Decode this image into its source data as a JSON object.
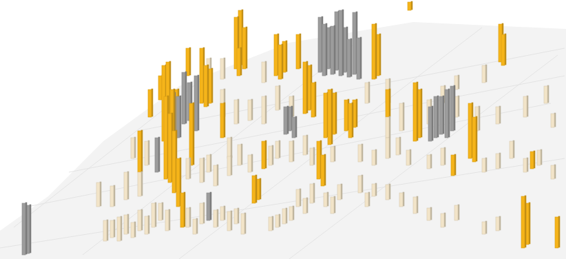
{
  "chart_data": {
    "type": "bar3d_map",
    "tick_labels": false,
    "xlim": [
      0,
      822
    ],
    "ylim": [
      0,
      376
    ],
    "series": [
      {
        "color": "#f5b41a",
        "x": [
          340,
          346,
          352,
          344,
          290,
          296,
          302,
          235,
          241,
          247,
          253,
          238,
          244,
          250,
          256,
          262,
          275,
          320,
          398,
          404,
          410,
          440,
          446,
          452,
          470,
          476,
          482,
          500,
          506,
          512,
          460,
          466,
          540,
          546,
          430,
          600,
          606,
          680,
          686,
          724,
          728,
          757,
          763,
          806,
          770,
          592,
          366,
          372,
          200,
          215,
          380,
          560,
          655,
          230,
          270
        ],
        "y": [
          100,
          95,
          100,
          110,
          150,
          155,
          150,
          205,
          210,
          220,
          200,
          260,
          265,
          280,
          300,
          330,
          240,
          200,
          110,
          115,
          105,
          165,
          160,
          170,
          200,
          210,
          195,
          190,
          200,
          185,
          260,
          270,
          115,
          110,
          100,
          205,
          200,
          230,
          235,
          90,
          95,
          360,
          355,
          360,
          245,
          15,
          295,
          290,
          250,
          170,
          245,
          170,
          255,
          145,
          110
        ],
        "values": [
          75,
          80,
          60,
          40,
          80,
          60,
          50,
          110,
          120,
          90,
          70,
          120,
          100,
          90,
          70,
          50,
          90,
          50,
          60,
          50,
          45,
          75,
          65,
          50,
          65,
          80,
          60,
          45,
          50,
          40,
          55,
          45,
          80,
          60,
          50,
          85,
          70,
          80,
          65,
          55,
          45,
          75,
          60,
          45,
          25,
          12,
          40,
          30,
          60,
          40,
          40,
          40,
          30,
          35,
          40
        ]
      },
      {
        "color": "#9c9c9c",
        "x": [
          462,
          468,
          474,
          480,
          486,
          492,
          498,
          504,
          512,
          518,
          240,
          248,
          256,
          264,
          272,
          282,
          412,
          418,
          424,
          622,
          630,
          638,
          646,
          654,
          32,
          38,
          300,
          225
        ],
        "y": [
          105,
          110,
          100,
          108,
          102,
          110,
          105,
          112,
          108,
          115,
          195,
          205,
          200,
          180,
          175,
          190,
          195,
          190,
          200,
          205,
          200,
          195,
          200,
          190,
          370,
          368,
          320,
          250
        ],
        "values": [
          80,
          75,
          60,
          70,
          85,
          95,
          65,
          55,
          90,
          60,
          90,
          70,
          60,
          75,
          55,
          80,
          40,
          35,
          30,
          50,
          60,
          55,
          70,
          65,
          75,
          70,
          40,
          50
        ]
      },
      {
        "color": "#f2e4c8",
        "x": [
          150,
          160,
          170,
          180,
          190,
          200,
          210,
          220,
          230,
          240,
          270,
          280,
          290,
          310,
          320,
          330,
          340,
          350,
          390,
          400,
          410,
          420,
          430,
          440,
          450,
          470,
          480,
          490,
          520,
          530,
          540,
          560,
          580,
          600,
          620,
          640,
          660,
          700,
          720,
          140,
          160,
          180,
          200,
          190,
          210,
          270,
          290,
          300,
          310,
          330,
          345,
          360,
          390,
          400,
          420,
          440,
          450,
          480,
          520,
          540,
          560,
          575,
          590,
          620,
          640,
          700,
          720,
          740,
          760,
          780,
          800,
          560,
          580,
          620,
          660,
          690,
          720,
          760,
          790,
          800,
          320,
          340,
          360,
          380,
          400,
          420,
          380,
          300,
          320,
          330,
          530,
          560,
          600,
          640,
          700,
          660
        ],
        "y": [
          350,
          345,
          350,
          340,
          345,
          335,
          340,
          330,
          320,
          335,
          330,
          340,
          325,
          330,
          320,
          335,
          325,
          340,
          335,
          330,
          325,
          320,
          300,
          310,
          295,
          300,
          310,
          290,
          280,
          300,
          285,
          290,
          300,
          310,
          320,
          330,
          320,
          340,
          335,
          300,
          300,
          290,
          285,
          230,
          240,
          260,
          265,
          250,
          270,
          255,
          240,
          250,
          240,
          230,
          235,
          225,
          240,
          235,
          235,
          240,
          230,
          225,
          240,
          245,
          240,
          250,
          245,
          230,
          250,
          240,
          260,
          200,
          190,
          180,
          170,
          190,
          180,
          170,
          150,
          185,
          170,
          180,
          175,
          180,
          160,
          170,
          120,
          120,
          115,
          230,
          150,
          150,
          160,
          150,
          120,
          130
        ],
        "values": [
          30,
          25,
          35,
          28,
          22,
          30,
          26,
          35,
          25,
          30,
          28,
          22,
          30,
          25,
          20,
          28,
          22,
          30,
          20,
          18,
          22,
          20,
          25,
          22,
          28,
          20,
          24,
          22,
          25,
          20,
          18,
          22,
          20,
          24,
          18,
          20,
          22,
          18,
          20,
          35,
          30,
          40,
          35,
          30,
          35,
          30,
          35,
          25,
          30,
          28,
          30,
          25,
          28,
          25,
          30,
          28,
          25,
          22,
          25,
          22,
          30,
          25,
          22,
          20,
          25,
          20,
          22,
          25,
          20,
          22,
          20,
          30,
          40,
          35,
          30,
          35,
          25,
          30,
          25,
          20,
          40,
          35,
          30,
          40,
          35,
          30,
          30,
          35,
          30,
          30,
          30,
          35,
          30,
          25,
          25,
          20
        ]
      }
    ]
  }
}
